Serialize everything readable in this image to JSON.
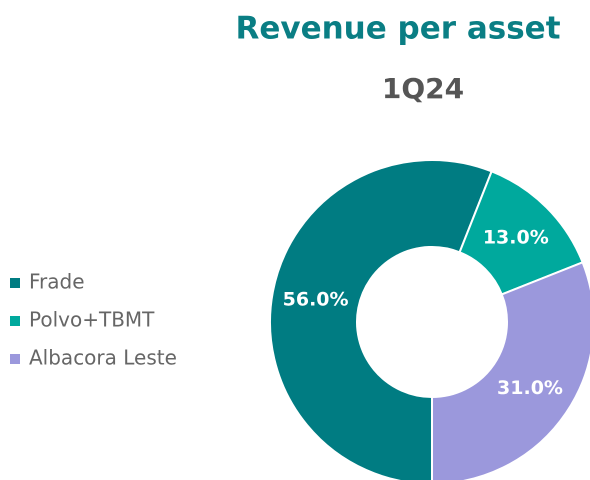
{
  "chart_data": {
    "type": "donut",
    "title": "Revenue per asset",
    "subtitle": "1Q24",
    "categories": [
      "Frade",
      "Polvo+TBMT",
      "Albacora Leste"
    ],
    "values": [
      56,
      13,
      31
    ],
    "value_labels": [
      "56.0%",
      "13.0%",
      "31.0%"
    ],
    "colors": [
      "#007c82",
      "#00a99d",
      "#9b98dc"
    ],
    "legend": "left"
  }
}
